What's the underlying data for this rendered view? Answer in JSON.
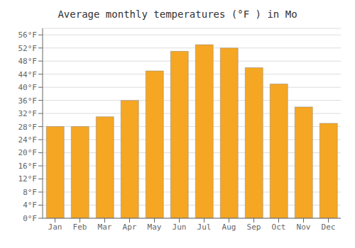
{
  "chart_data": {
    "type": "bar",
    "title": "Average monthly temperatures (°F ) in Mo",
    "categories": [
      "Jan",
      "Feb",
      "Mar",
      "Apr",
      "May",
      "Jun",
      "Jul",
      "Aug",
      "Sep",
      "Oct",
      "Nov",
      "Dec"
    ],
    "values": [
      28,
      28,
      31,
      36,
      45,
      51,
      53,
      52,
      46,
      41,
      34,
      29
    ],
    "color": "#F5A623",
    "ylim": [
      0,
      58
    ],
    "yticks": [
      {
        "value": 0,
        "label": "0°F"
      },
      {
        "value": 4,
        "label": "4°F"
      },
      {
        "value": 8,
        "label": "8°F"
      },
      {
        "value": 12,
        "label": "12°F"
      },
      {
        "value": 16,
        "label": "16°F"
      },
      {
        "value": 20,
        "label": "20°F"
      },
      {
        "value": 24,
        "label": "24°F"
      },
      {
        "value": 28,
        "label": "28°F"
      },
      {
        "value": 32,
        "label": "32°F"
      },
      {
        "value": 36,
        "label": "36°F"
      },
      {
        "value": 40,
        "label": "40°F"
      },
      {
        "value": 44,
        "label": "44°F"
      },
      {
        "value": 48,
        "label": "48°F"
      },
      {
        "value": 52,
        "label": "52°F"
      },
      {
        "value": 56,
        "label": "56°F"
      }
    ],
    "grid": true
  }
}
